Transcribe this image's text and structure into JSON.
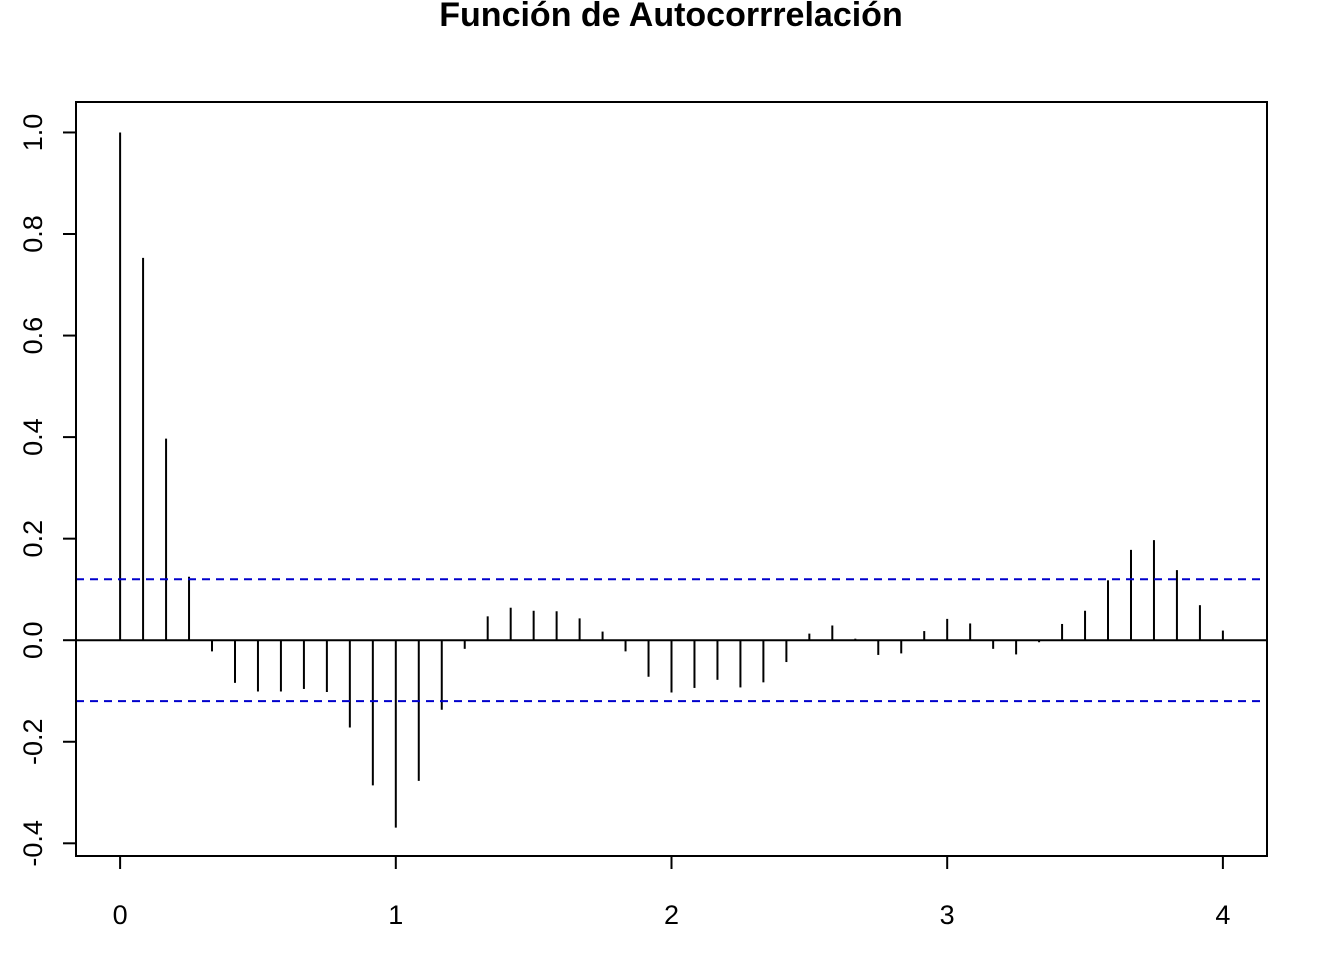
{
  "chart_data": {
    "type": "bar",
    "title": "Función de Autocorrrelación",
    "xlabel": "",
    "ylabel": "",
    "xlim": [
      -0.16,
      4.16
    ],
    "ylim": [
      -0.425,
      1.06
    ],
    "x_ticks": [
      0,
      1,
      2,
      3,
      4
    ],
    "y_ticks": [
      -0.4,
      -0.2,
      0.0,
      0.2,
      0.4,
      0.6,
      0.8,
      1.0
    ],
    "x_tick_labels": [
      "0",
      "1",
      "2",
      "3",
      "4"
    ],
    "y_tick_labels": [
      "-0.4",
      "-0.2",
      "0.0",
      "0.2",
      "0.4",
      "0.6",
      "0.8",
      "1.0"
    ],
    "confidence_bounds": [
      0.12,
      -0.12
    ],
    "grid": false,
    "colors": {
      "bars": "#000000",
      "bounds": "#0000cc",
      "zero_line": "#000000"
    },
    "lags": [
      0,
      0.0833,
      0.1667,
      0.25,
      0.3333,
      0.4167,
      0.5,
      0.5833,
      0.6667,
      0.75,
      0.8333,
      0.9167,
      1.0,
      1.0833,
      1.1667,
      1.25,
      1.3333,
      1.4167,
      1.5,
      1.5833,
      1.6667,
      1.75,
      1.8333,
      1.9167,
      2.0,
      2.0833,
      2.1667,
      2.25,
      2.3333,
      2.4167,
      2.5,
      2.5833,
      2.6667,
      2.75,
      2.8333,
      2.9167,
      3.0,
      3.0833,
      3.1667,
      3.25,
      3.3333,
      3.4167,
      3.5,
      3.5833,
      3.6667,
      3.75,
      3.8333,
      3.9167,
      4.0
    ],
    "values": [
      1.0,
      0.753,
      0.397,
      0.125,
      -0.022,
      -0.084,
      -0.101,
      -0.101,
      -0.096,
      -0.102,
      -0.172,
      -0.286,
      -0.369,
      -0.277,
      -0.137,
      -0.017,
      0.047,
      0.064,
      0.058,
      0.057,
      0.043,
      0.017,
      -0.022,
      -0.072,
      -0.103,
      -0.094,
      -0.078,
      -0.093,
      -0.083,
      -0.043,
      0.013,
      0.029,
      0.003,
      -0.029,
      -0.026,
      0.018,
      0.042,
      0.033,
      -0.017,
      -0.028,
      -0.004,
      0.032,
      0.058,
      0.118,
      0.178,
      0.197,
      0.138,
      0.069,
      0.019
    ]
  }
}
